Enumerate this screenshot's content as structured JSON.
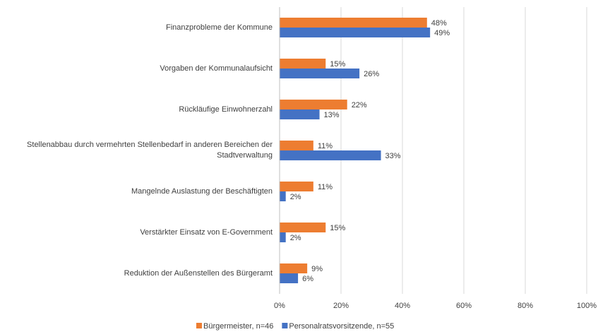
{
  "chart_data": {
    "type": "hbar",
    "categories": [
      "Finanzprobleme der Kommune",
      "Vorgaben der Kommunalaufsicht",
      "Rückläufige Einwohnerzahl",
      "Stellenabbau durch vermehrten Stellenbedarf in anderen Bereichen der Stadtverwaltung",
      "Mangelnde Auslastung der Beschäftigten",
      "Verstärkter Einsatz von E-Government",
      "Reduktion der Außenstellen des Bürgeramt"
    ],
    "series": [
      {
        "name": "Bürgermeister, n=46",
        "color": "#ed7d31",
        "values": [
          48,
          15,
          22,
          11,
          11,
          15,
          9
        ],
        "value_labels": [
          "48%",
          "15%",
          "22%",
          "11%",
          "11%",
          "15%",
          "9%"
        ]
      },
      {
        "name": "Personalratsvorsitzende, n=55",
        "color": "#4472c4",
        "values": [
          49,
          26,
          13,
          33,
          2,
          2,
          6
        ],
        "value_labels": [
          "49%",
          "26%",
          "13%",
          "33%",
          "2%",
          "2%",
          "6%"
        ]
      }
    ],
    "xlim": [
      0,
      100
    ],
    "xticks": [
      {
        "value": 0,
        "label": "0%"
      },
      {
        "value": 20,
        "label": "20%"
      },
      {
        "value": 40,
        "label": "40%"
      },
      {
        "value": 60,
        "label": "60%"
      },
      {
        "value": 80,
        "label": "80%"
      },
      {
        "value": 100,
        "label": "100%"
      }
    ],
    "grid": true,
    "legend": "bottom"
  }
}
